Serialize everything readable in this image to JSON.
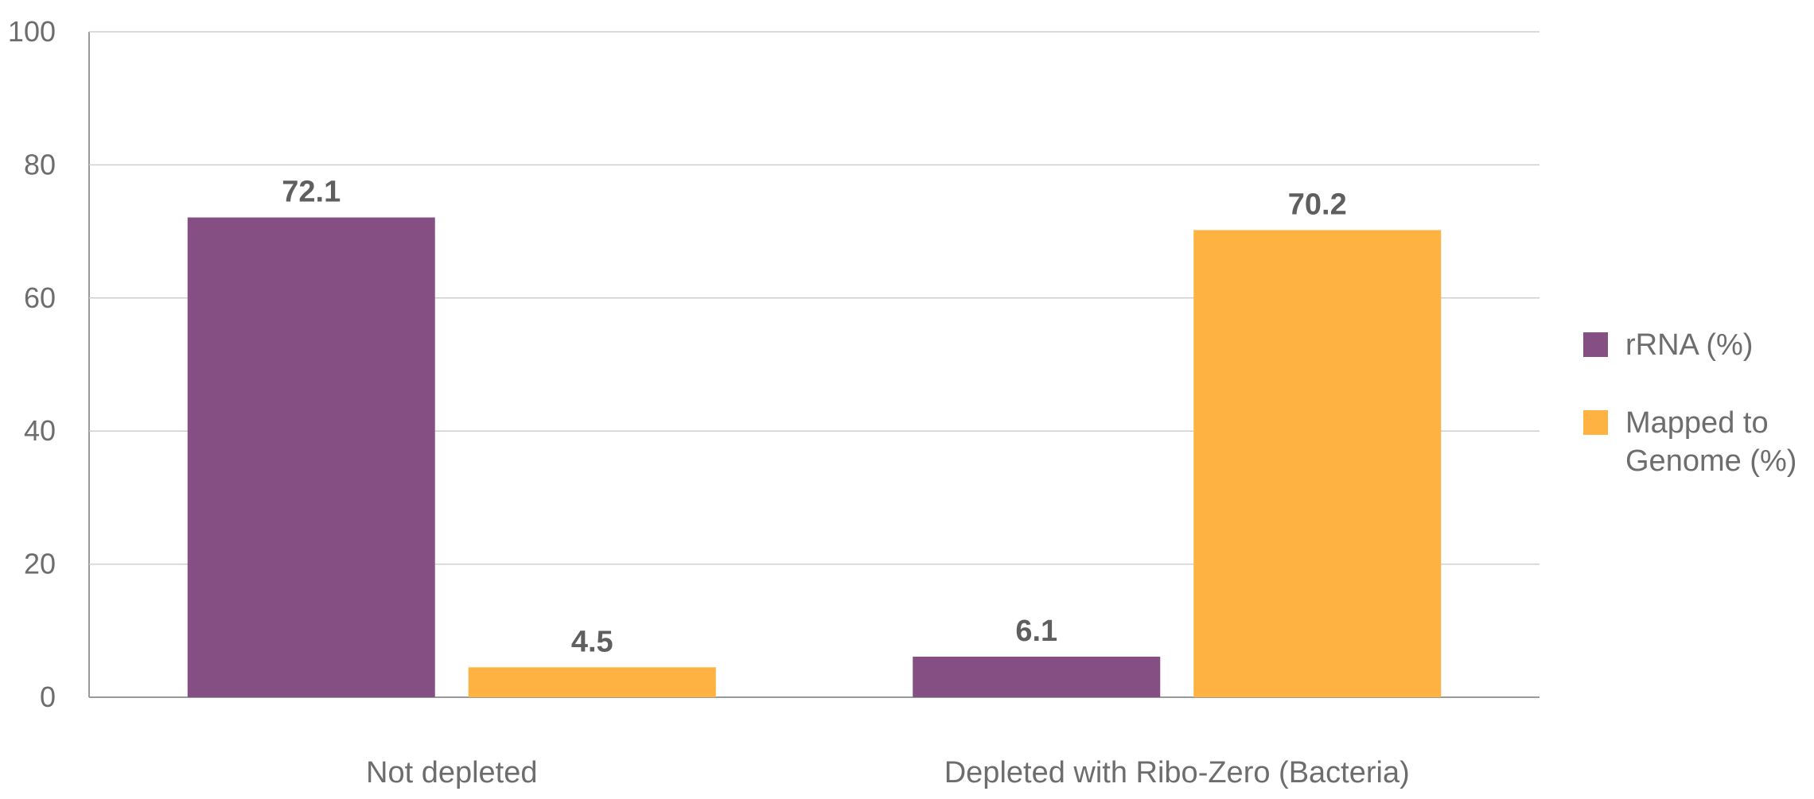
{
  "chart_data": {
    "type": "bar",
    "title": "",
    "xlabel": "",
    "ylabel": "",
    "categories": [
      "Not depleted",
      "Depleted with Ribo-Zero (Bacteria)"
    ],
    "series": [
      {
        "name": "rRNA (%)",
        "color": "#854f84",
        "values": [
          72.1,
          6.1
        ]
      },
      {
        "name": "Mapped to Genome (%)",
        "color": "#fdb241",
        "values": [
          4.5,
          70.2
        ]
      }
    ],
    "ylim": [
      0,
      100
    ],
    "yticks": [
      0,
      20,
      40,
      60,
      80,
      100
    ],
    "grid": true,
    "legend": {
      "position": "right",
      "entries": [
        {
          "lines": [
            "rRNA (%)"
          ]
        },
        {
          "lines": [
            "Mapped to",
            "Genome (%)"
          ]
        }
      ]
    },
    "data_labels": [
      [
        "72.1",
        "6.1"
      ],
      [
        "4.5",
        "70.2"
      ]
    ]
  }
}
